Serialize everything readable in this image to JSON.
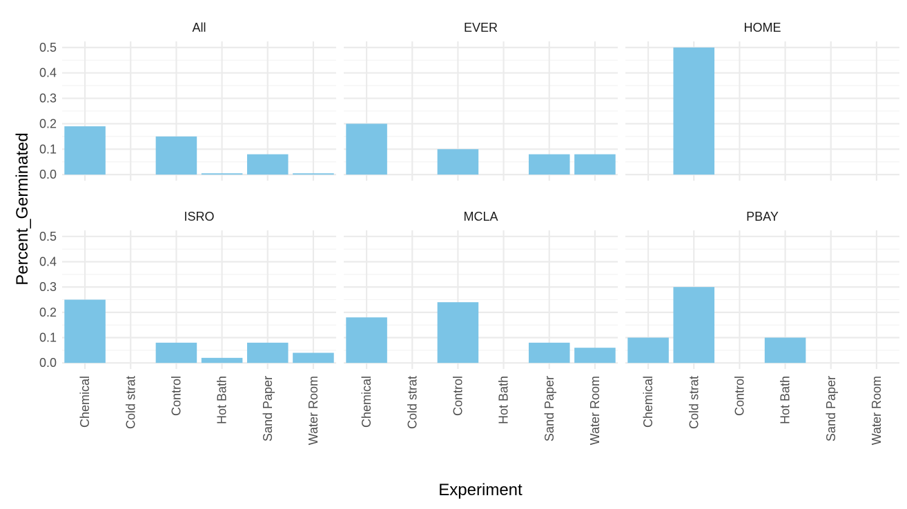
{
  "chart_data": {
    "type": "bar",
    "xlabel": "Experiment",
    "ylabel": "Percent_Germinated",
    "ylim": [
      0,
      0.5
    ],
    "y_ticks": [
      "0.0",
      "0.1",
      "0.2",
      "0.3",
      "0.4",
      "0.5"
    ],
    "categories": [
      "Chemical",
      "Cold strat",
      "Control",
      "Hot Bath",
      "Sand Paper",
      "Water Room"
    ],
    "bar_color": "#7bc4e6",
    "grid": true,
    "legend": "none",
    "facets": [
      {
        "name": "All",
        "values": [
          0.19,
          0,
          0.15,
          0.005,
          0.08,
          0.005
        ]
      },
      {
        "name": "EVER",
        "values": [
          0.2,
          0,
          0.1,
          0,
          0.08,
          0.08
        ]
      },
      {
        "name": "HOME",
        "values": [
          0,
          0.5,
          0,
          0,
          0,
          0
        ]
      },
      {
        "name": "ISRO",
        "values": [
          0.25,
          0,
          0.08,
          0.02,
          0.08,
          0.04
        ]
      },
      {
        "name": "MCLA",
        "values": [
          0.18,
          0,
          0.24,
          0,
          0.08,
          0.06
        ]
      },
      {
        "name": "PBAY",
        "values": [
          0.1,
          0.3,
          0,
          0.1,
          0,
          0
        ]
      }
    ]
  }
}
